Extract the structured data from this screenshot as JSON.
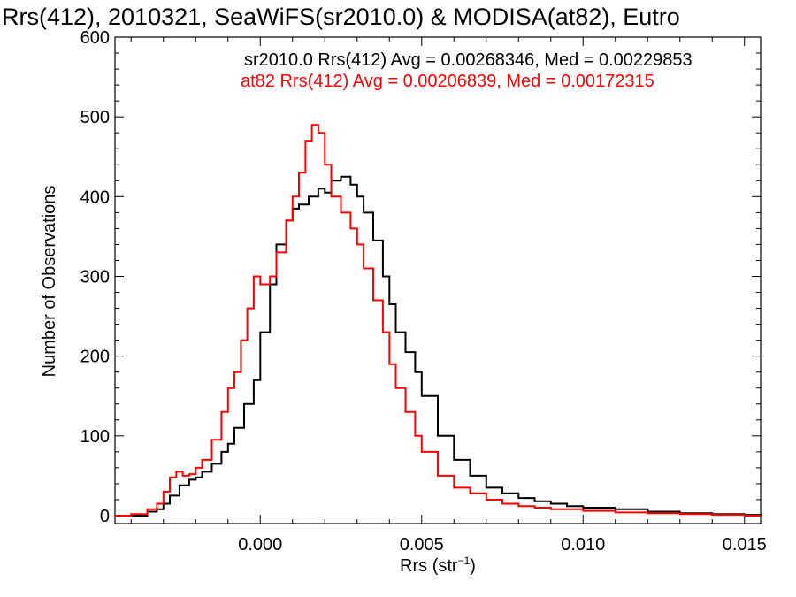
{
  "chart_data": {
    "type": "line",
    "step": true,
    "title": "Rrs(412), 2010321, SeaWiFS(sr2010.0) & MODISA(at82), Eutro",
    "xlabel_main": "Rrs (str",
    "xlabel_sup": "−1",
    "xlabel_close": ")",
    "ylabel": "Number of Observations",
    "xlim": [
      -0.0045,
      0.0155
    ],
    "ylim": [
      -10,
      600
    ],
    "xticks": [
      0.0,
      0.005,
      0.01,
      0.015
    ],
    "xtick_labels": [
      "0.000",
      "0.005",
      "0.010",
      "0.015"
    ],
    "yticks": [
      0,
      100,
      200,
      300,
      400,
      500,
      600
    ],
    "ytick_labels": [
      "0",
      "100",
      "200",
      "300",
      "400",
      "500",
      "600"
    ],
    "annotations": [
      {
        "text": "sr2010.0 Rrs(412) Avg = 0.00268346, Med = 0.00229853",
        "color": "#000000"
      },
      {
        "text": "at82 Rrs(412) Avg = 0.00206839, Med = 0.00172315",
        "color": "#ff0000"
      }
    ],
    "series": [
      {
        "color": "#000000",
        "x": [
          -0.0045,
          -0.004,
          -0.0035,
          -0.0032,
          -0.003,
          -0.0028,
          -0.0025,
          -0.0022,
          -0.002,
          -0.0018,
          -0.0015,
          -0.0012,
          -0.001,
          -0.0008,
          -0.0005,
          -0.0002,
          0.0,
          0.0003,
          0.0005,
          0.0008,
          0.001,
          0.0012,
          0.0015,
          0.0018,
          0.002,
          0.0022,
          0.0025,
          0.0028,
          0.003,
          0.0032,
          0.0035,
          0.0038,
          0.004,
          0.0042,
          0.0045,
          0.0048,
          0.005,
          0.0055,
          0.006,
          0.0065,
          0.007,
          0.0075,
          0.008,
          0.0085,
          0.009,
          0.0095,
          0.01,
          0.011,
          0.012,
          0.013,
          0.014,
          0.015,
          0.0155
        ],
        "y": [
          0,
          0,
          5,
          8,
          15,
          25,
          38,
          45,
          48,
          55,
          65,
          80,
          90,
          110,
          140,
          170,
          230,
          290,
          340,
          370,
          385,
          390,
          400,
          410,
          405,
          420,
          425,
          415,
          400,
          380,
          345,
          300,
          265,
          230,
          205,
          180,
          150,
          100,
          70,
          50,
          35,
          28,
          22,
          18,
          15,
          12,
          10,
          8,
          5,
          3,
          2,
          1,
          0
        ]
      },
      {
        "color": "#ff0000",
        "x": [
          -0.0045,
          -0.004,
          -0.0035,
          -0.0032,
          -0.003,
          -0.0028,
          -0.0026,
          -0.0024,
          -0.0022,
          -0.002,
          -0.0018,
          -0.0015,
          -0.0012,
          -0.001,
          -0.0008,
          -0.0006,
          -0.0004,
          -0.0002,
          0.0,
          0.0003,
          0.0005,
          0.0008,
          0.001,
          0.0012,
          0.0014,
          0.0016,
          0.0018,
          0.002,
          0.0022,
          0.0025,
          0.0028,
          0.003,
          0.0032,
          0.0035,
          0.0038,
          0.004,
          0.0042,
          0.0045,
          0.0048,
          0.005,
          0.0055,
          0.006,
          0.0065,
          0.007,
          0.0075,
          0.008,
          0.0085,
          0.009,
          0.01,
          0.011,
          0.012,
          0.013,
          0.014,
          0.015,
          0.0155
        ],
        "y": [
          0,
          2,
          8,
          15,
          30,
          48,
          55,
          50,
          52,
          60,
          70,
          95,
          130,
          160,
          180,
          220,
          260,
          300,
          290,
          300,
          330,
          370,
          400,
          430,
          470,
          490,
          480,
          440,
          400,
          380,
          360,
          340,
          310,
          270,
          230,
          190,
          160,
          130,
          100,
          80,
          50,
          35,
          28,
          20,
          15,
          12,
          10,
          8,
          6,
          4,
          3,
          2,
          1,
          0,
          0
        ]
      }
    ]
  }
}
